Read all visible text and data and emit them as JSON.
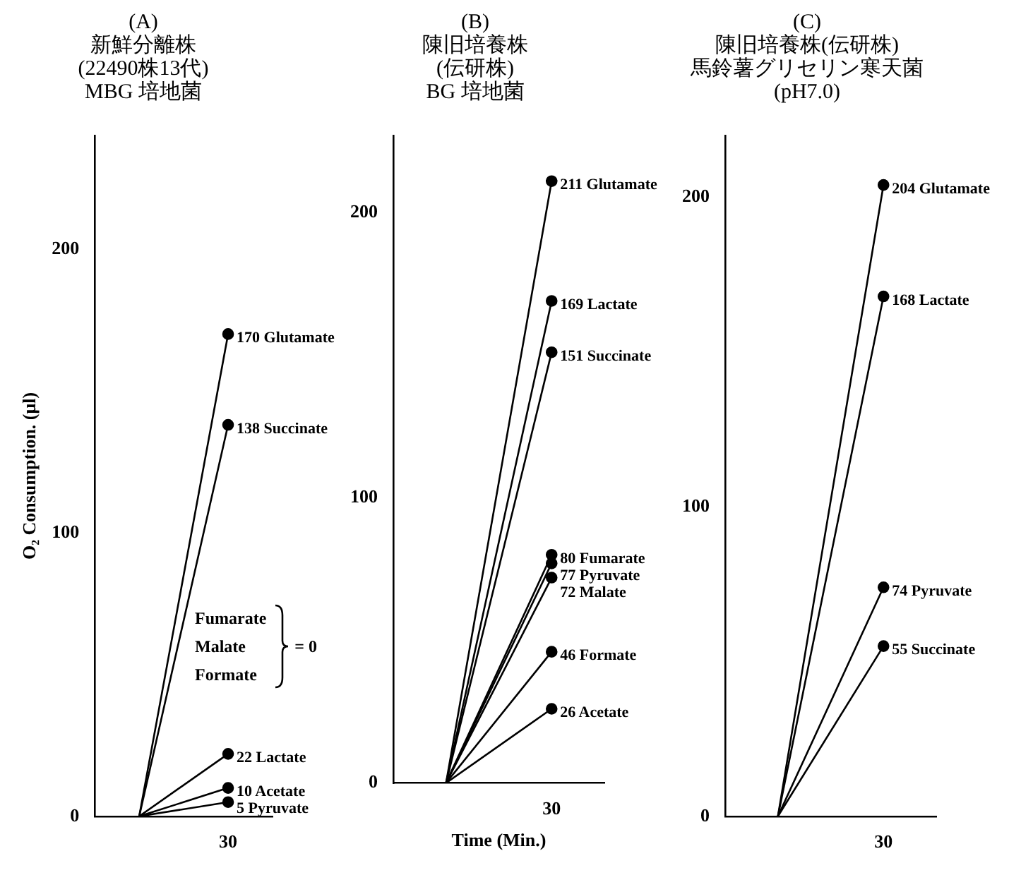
{
  "chart_data": [
    {
      "type": "line",
      "title": "(A)\n新鮮分離株\n(22490株13代)\nMBG 培地菌",
      "ylabel": "O₂ Consumption. (μl)",
      "categories": [
        null,
        "30"
      ],
      "ylim": [
        0,
        240
      ],
      "yticks": [
        0,
        100,
        200
      ],
      "grid": false,
      "legend": false,
      "marker": "circle",
      "line_style": "solid",
      "annotations": [
        "Fumarate\nMalate\nFormate\n= 0"
      ],
      "series": [
        {
          "name": "Glutamate",
          "color": "#000000",
          "values": [
            0,
            170
          ],
          "value_labels": [
            null,
            "170"
          ]
        },
        {
          "name": "Succinate",
          "color": "#000000",
          "values": [
            0,
            138
          ],
          "value_labels": [
            null,
            "138"
          ]
        },
        {
          "name": "Lactate",
          "color": "#000000",
          "values": [
            0,
            22
          ],
          "value_labels": [
            null,
            "22"
          ]
        },
        {
          "name": "Acetate",
          "color": "#000000",
          "values": [
            0,
            10
          ],
          "value_labels": [
            null,
            "10"
          ]
        },
        {
          "name": "Pyruvate",
          "color": "#000000",
          "values": [
            0,
            5
          ],
          "value_labels": [
            null,
            "5"
          ]
        }
      ]
    },
    {
      "type": "line",
      "title": "(B)\n陳旧培養株\n(伝研株)\nBG 培地菌",
      "xlabel": "Time (Min.)",
      "categories": [
        null,
        "30"
      ],
      "ylim": [
        0,
        227
      ],
      "yticks": [
        0,
        100,
        200
      ],
      "grid": false,
      "legend": false,
      "marker": "circle",
      "line_style": "solid",
      "series": [
        {
          "name": "Glutamate",
          "color": "#000000",
          "values": [
            0,
            211
          ],
          "value_labels": [
            null,
            "211"
          ]
        },
        {
          "name": "Lactate",
          "color": "#000000",
          "values": [
            0,
            169
          ],
          "value_labels": [
            null,
            "169"
          ]
        },
        {
          "name": "Succinate",
          "color": "#000000",
          "values": [
            0,
            151
          ],
          "value_labels": [
            null,
            "151"
          ]
        },
        {
          "name": "Fumarate",
          "color": "#000000",
          "values": [
            0,
            80
          ],
          "value_labels": [
            null,
            "80"
          ]
        },
        {
          "name": "Pyruvate",
          "color": "#000000",
          "values": [
            0,
            77
          ],
          "value_labels": [
            null,
            "77"
          ]
        },
        {
          "name": "Malate",
          "color": "#000000",
          "values": [
            0,
            72
          ],
          "value_labels": [
            null,
            "72"
          ]
        },
        {
          "name": "Formate",
          "color": "#000000",
          "values": [
            0,
            46
          ],
          "value_labels": [
            null,
            "46"
          ]
        },
        {
          "name": "Acetate",
          "color": "#000000",
          "values": [
            0,
            26
          ],
          "value_labels": [
            null,
            "26"
          ]
        }
      ]
    },
    {
      "type": "line",
      "title": "(C)\n陳旧培養株(伝研株)\n馬鈴薯グリセリン寒天菌\n(pH7.0)",
      "categories": [
        null,
        "30"
      ],
      "ylim": [
        0,
        220
      ],
      "yticks": [
        0,
        100,
        200
      ],
      "grid": false,
      "legend": false,
      "marker": "circle",
      "line_style": "solid",
      "series": [
        {
          "name": "Glutamate",
          "color": "#000000",
          "values": [
            0,
            204
          ],
          "value_labels": [
            null,
            "204"
          ]
        },
        {
          "name": "Lactate",
          "color": "#000000",
          "values": [
            0,
            168
          ],
          "value_labels": [
            null,
            "168"
          ]
        },
        {
          "name": "Pyruvate",
          "color": "#000000",
          "values": [
            0,
            74
          ],
          "value_labels": [
            null,
            "74"
          ]
        },
        {
          "name": "Succinate",
          "color": "#000000",
          "values": [
            0,
            55
          ],
          "value_labels": [
            null,
            "55"
          ]
        }
      ]
    }
  ]
}
